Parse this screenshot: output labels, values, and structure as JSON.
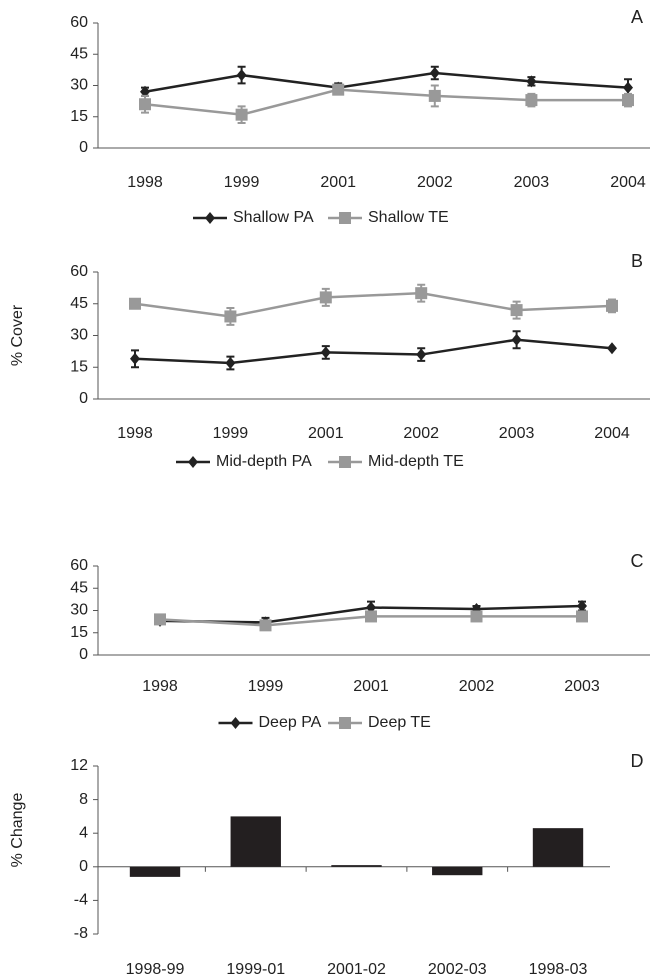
{
  "chart_data": [
    {
      "type": "line",
      "panel_label": "A",
      "categories": [
        "1998",
        "1999",
        "2001",
        "2002",
        "2003",
        "2004"
      ],
      "series": [
        {
          "name": "Shallow PA",
          "color": "#222222",
          "marker": "diamond",
          "values": [
            27,
            35,
            29,
            36,
            32,
            29
          ],
          "errors": [
            2,
            4,
            2,
            3,
            2,
            4
          ]
        },
        {
          "name": "Shallow TE",
          "color": "#999999",
          "marker": "square",
          "values": [
            21,
            16,
            28,
            25,
            23,
            23
          ],
          "errors": [
            4,
            4,
            2,
            5,
            3,
            3
          ]
        }
      ],
      "ylim": [
        0,
        60
      ],
      "yticks": [
        0,
        15,
        30,
        45,
        60
      ],
      "grid": false
    },
    {
      "type": "line",
      "panel_label": "B",
      "y_label": "% Cover",
      "categories": [
        "1998",
        "1999",
        "2001",
        "2002",
        "2003",
        "2004"
      ],
      "series": [
        {
          "name": "Mid-depth PA",
          "color": "#222222",
          "marker": "diamond",
          "values": [
            19,
            17,
            22,
            21,
            28,
            24
          ],
          "errors": [
            4,
            3,
            3,
            3,
            4,
            0
          ]
        },
        {
          "name": "Mid-depth TE",
          "color": "#999999",
          "marker": "square",
          "values": [
            45,
            39,
            48,
            50,
            42,
            44
          ],
          "errors": [
            2,
            4,
            4,
            4,
            4,
            3
          ]
        }
      ],
      "ylim": [
        0,
        60
      ],
      "yticks": [
        0,
        15,
        30,
        45,
        60
      ],
      "grid": false
    },
    {
      "type": "line",
      "panel_label": "C",
      "categories": [
        "1998",
        "1999",
        "2001",
        "2002",
        "2003"
      ],
      "series": [
        {
          "name": "Deep PA",
          "color": "#222222",
          "marker": "diamond",
          "values": [
            23,
            22,
            32,
            31,
            33
          ],
          "errors": [
            1,
            3,
            4,
            2,
            3
          ]
        },
        {
          "name": "Deep TE",
          "color": "#999999",
          "marker": "square",
          "values": [
            24,
            20,
            26,
            26,
            26
          ],
          "errors": [
            1,
            1,
            2,
            1,
            2
          ]
        }
      ],
      "ylim": [
        0,
        60
      ],
      "yticks": [
        0,
        15,
        30,
        45,
        60
      ],
      "grid": false
    },
    {
      "type": "bar",
      "panel_label": "D",
      "y_label": "% Change",
      "categories": [
        "1998-99",
        "1999-01",
        "2001-02",
        "2002-03",
        "1998-03"
      ],
      "values": [
        -1.2,
        6,
        0.2,
        -1,
        4.6
      ],
      "color": "#231f20",
      "ylim": [
        -8,
        12
      ],
      "yticks": [
        -8,
        -4,
        0,
        4,
        8,
        12
      ],
      "grid": false
    }
  ]
}
